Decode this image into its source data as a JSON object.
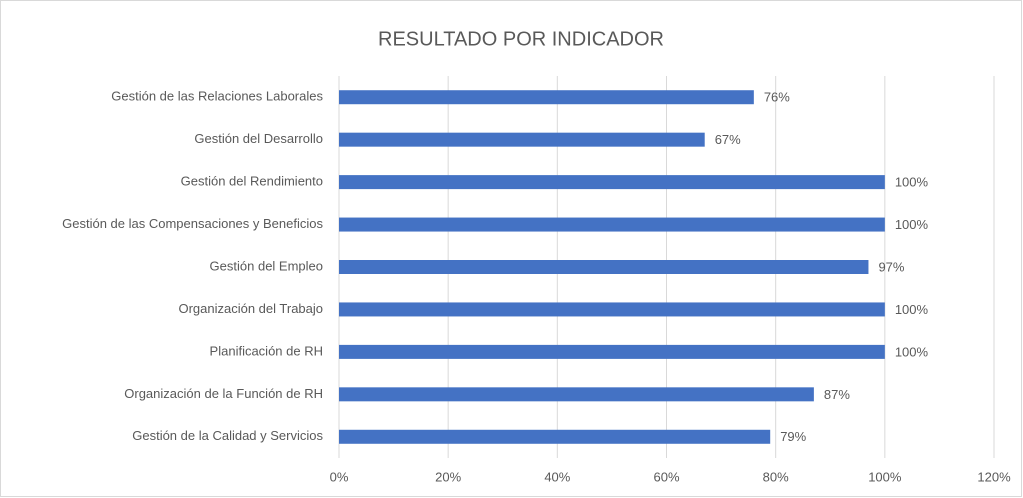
{
  "chart_data": {
    "type": "bar",
    "orientation": "horizontal",
    "title": "RESULTADO POR INDICADOR",
    "categories": [
      "Gestión de las Relaciones Laborales",
      "Gestión del Desarrollo",
      "Gestión del Rendimiento",
      "Gestión de las Compensaciones y Beneficios",
      "Gestión del Empleo",
      "Organización del Trabajo",
      "Planificación de RH",
      "Organización de la Función de RH",
      "Gestión de la Calidad y Servicios"
    ],
    "values": [
      76,
      67,
      100,
      100,
      97,
      100,
      100,
      87,
      79
    ],
    "value_labels": [
      "76%",
      "67%",
      "100%",
      "100%",
      "97%",
      "100%",
      "100%",
      "87%",
      "79%"
    ],
    "color": "#4472c4",
    "xlim": [
      0,
      120
    ],
    "xticks": [
      {
        "value": 0,
        "label": "0%"
      },
      {
        "value": 20,
        "label": "20%"
      },
      {
        "value": 40,
        "label": "40%"
      },
      {
        "value": 60,
        "label": "60%"
      },
      {
        "value": 80,
        "label": "80%"
      },
      {
        "value": 100,
        "label": "100%"
      },
      {
        "value": 120,
        "label": "120%"
      }
    ],
    "grid": true
  }
}
